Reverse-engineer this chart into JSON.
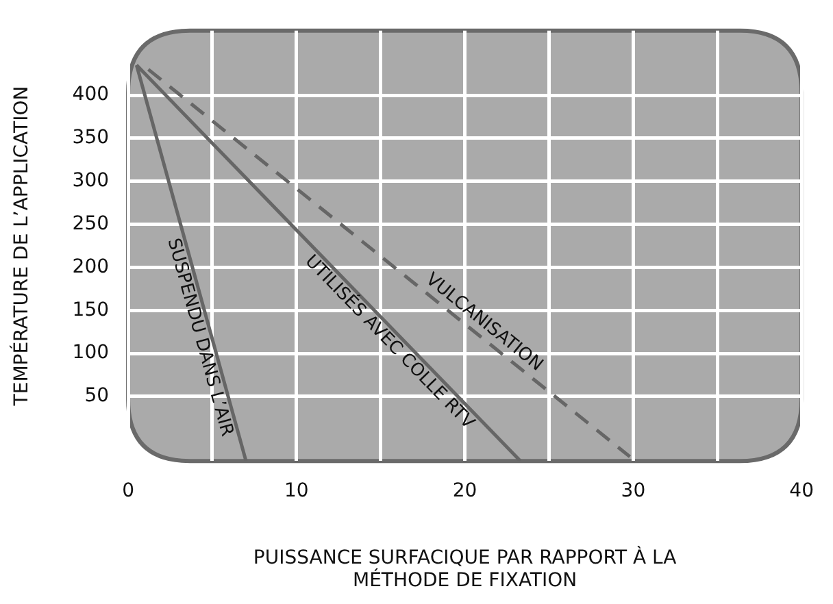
{
  "chart_data": {
    "type": "line",
    "xlabel": "PUISSANCE SURFACIQUE PAR RAPPORT À LA\nMÉTHODE DE FIXATION",
    "ylabel": "TEMPÉRATURE DE L’APPLICATION",
    "xlim": [
      0,
      40
    ],
    "ylim": [
      -25,
      475
    ],
    "xticks": [
      0,
      {
        "value": 5,
        "label": null
      },
      10,
      {
        "value": 15,
        "label": null
      },
      20,
      {
        "value": 25,
        "label": null
      },
      30,
      {
        "value": 35,
        "label": null
      },
      40
    ],
    "yticks": [
      50,
      100,
      150,
      200,
      250,
      300,
      350,
      400
    ],
    "grid": true,
    "legend": false,
    "marker": "none",
    "series": [
      {
        "name": "SUSPENDU DANS L’AIR",
        "color": "#666666",
        "x": [
          0.5,
          7
        ],
        "values": [
          435,
          -25
        ],
        "line_style": "solid"
      },
      {
        "name": "UTILISÉS AVEC COLLE RTV",
        "color": "#666666",
        "x": [
          0.5,
          23.3
        ],
        "values": [
          435,
          -25
        ],
        "line_style": "solid"
      },
      {
        "name": "VULCANISATION",
        "color": "#666666",
        "x": [
          1.2,
          29.8
        ],
        "values": [
          430,
          -20
        ],
        "line_style": "dashed"
      }
    ]
  }
}
